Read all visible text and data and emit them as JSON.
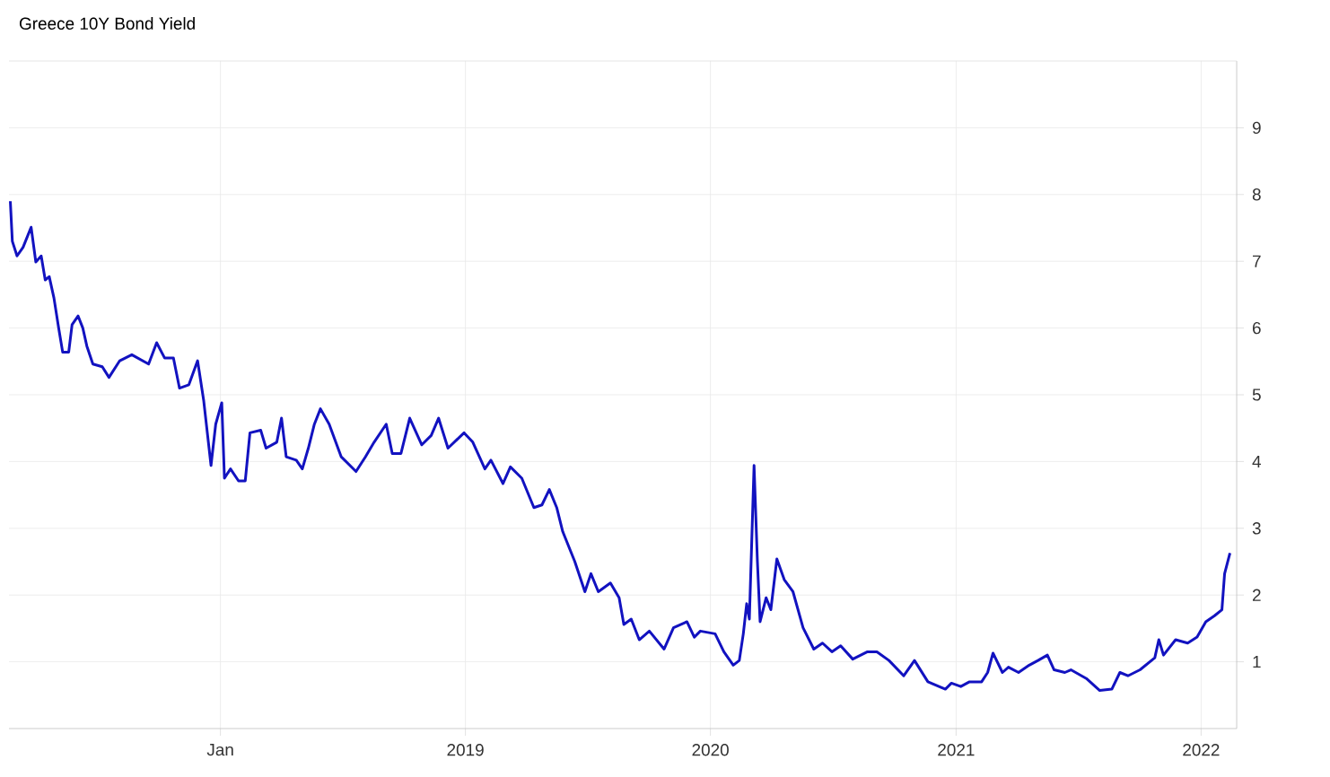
{
  "chart_data": {
    "type": "line",
    "title": "Greece 10Y Bond Yield",
    "color": "#1212c0",
    "grid": true,
    "xlim": [
      "2017-02-20",
      "2022-02-23"
    ],
    "ylim": [
      0,
      10
    ],
    "yticks": [
      1,
      2,
      3,
      4,
      5,
      6,
      7,
      8,
      9
    ],
    "xticks": [
      {
        "value": "2018-01-01",
        "label": "Jan"
      },
      {
        "value": "2019-01-01",
        "label": "2019"
      },
      {
        "value": "2020-01-01",
        "label": "2020"
      },
      {
        "value": "2021-01-01",
        "label": "2021"
      },
      {
        "value": "2022-01-01",
        "label": "2022"
      }
    ],
    "x": [
      "2017-02-22",
      "2017-02-25",
      "2017-03-04",
      "2017-03-13",
      "2017-03-25",
      "2017-04-01",
      "2017-04-09",
      "2017-04-15",
      "2017-04-21",
      "2017-04-28",
      "2017-05-05",
      "2017-05-11",
      "2017-05-20",
      "2017-05-25",
      "2017-06-03",
      "2017-06-10",
      "2017-06-16",
      "2017-06-25",
      "2017-07-09",
      "2017-07-19",
      "2017-08-04",
      "2017-08-22",
      "2017-09-16",
      "2017-09-28",
      "2017-10-10",
      "2017-10-23",
      "2017-11-01",
      "2017-11-15",
      "2017-11-28",
      "2017-12-07",
      "2017-12-18",
      "2017-12-25",
      "2018-01-03",
      "2018-01-07",
      "2018-01-16",
      "2018-01-28",
      "2018-02-07",
      "2018-02-14",
      "2018-03-02",
      "2018-03-10",
      "2018-03-26",
      "2018-04-02",
      "2018-04-09",
      "2018-04-24",
      "2018-05-03",
      "2018-05-12",
      "2018-05-21",
      "2018-05-30",
      "2018-06-12",
      "2018-06-30",
      "2018-07-22",
      "2018-08-05",
      "2018-08-18",
      "2018-09-05",
      "2018-09-14",
      "2018-09-27",
      "2018-10-10",
      "2018-10-28",
      "2018-11-11",
      "2018-11-22",
      "2018-12-06",
      "2018-12-30",
      "2019-01-12",
      "2019-01-30",
      "2019-02-08",
      "2019-02-26",
      "2019-03-09",
      "2019-03-26",
      "2019-04-13",
      "2019-04-25",
      "2019-05-06",
      "2019-05-17",
      "2019-05-26",
      "2019-06-13",
      "2019-06-28",
      "2019-07-07",
      "2019-07-18",
      "2019-08-05",
      "2019-08-18",
      "2019-08-25",
      "2019-09-05",
      "2019-09-17",
      "2019-10-02",
      "2019-10-24",
      "2019-11-07",
      "2019-11-27",
      "2019-12-08",
      "2019-12-17",
      "2020-01-08",
      "2020-01-21",
      "2020-02-04",
      "2020-02-13",
      "2020-02-19",
      "2020-02-24",
      "2020-02-28",
      "2020-03-06",
      "2020-03-11",
      "2020-03-15",
      "2020-03-24",
      "2020-03-31",
      "2020-04-09",
      "2020-04-20",
      "2020-05-03",
      "2020-05-18",
      "2020-06-03",
      "2020-06-16",
      "2020-06-30",
      "2020-07-13",
      "2020-07-31",
      "2020-08-22",
      "2020-09-05",
      "2020-09-23",
      "2020-10-15",
      "2020-10-31",
      "2020-11-20",
      "2020-12-16",
      "2020-12-25",
      "2021-01-08",
      "2021-01-21",
      "2021-02-08",
      "2021-02-17",
      "2021-02-25",
      "2021-03-11",
      "2021-03-20",
      "2021-04-04",
      "2021-04-20",
      "2021-05-03",
      "2021-05-17",
      "2021-05-27",
      "2021-06-12",
      "2021-06-21",
      "2021-07-14",
      "2021-08-03",
      "2021-08-21",
      "2021-09-02",
      "2021-09-14",
      "2021-10-02",
      "2021-10-24",
      "2021-10-30",
      "2021-11-06",
      "2021-11-24",
      "2021-12-12",
      "2021-12-26",
      "2022-01-08",
      "2022-01-21",
      "2022-02-01",
      "2022-02-05",
      "2022-02-13"
    ],
    "values": [
      7.9,
      7.3,
      7.08,
      7.21,
      7.51,
      6.99,
      7.08,
      6.72,
      6.77,
      6.45,
      6.0,
      5.64,
      5.64,
      6.05,
      6.18,
      6.0,
      5.73,
      5.46,
      5.42,
      5.26,
      5.51,
      5.6,
      5.46,
      5.78,
      5.55,
      5.55,
      5.1,
      5.15,
      5.51,
      4.92,
      3.94,
      4.56,
      4.88,
      3.75,
      3.89,
      3.71,
      3.71,
      4.43,
      4.47,
      4.2,
      4.29,
      4.65,
      4.07,
      4.02,
      3.89,
      4.2,
      4.56,
      4.79,
      4.56,
      4.07,
      3.85,
      4.07,
      4.29,
      4.56,
      4.12,
      4.12,
      4.65,
      4.25,
      4.39,
      4.65,
      4.2,
      4.43,
      4.29,
      3.89,
      4.02,
      3.67,
      3.92,
      3.75,
      3.31,
      3.35,
      3.58,
      3.31,
      2.95,
      2.5,
      2.05,
      2.32,
      2.05,
      2.18,
      1.96,
      1.56,
      1.64,
      1.33,
      1.46,
      1.19,
      1.51,
      1.6,
      1.37,
      1.46,
      1.42,
      1.15,
      0.95,
      1.02,
      1.42,
      1.87,
      1.64,
      3.94,
      2.5,
      1.6,
      1.96,
      1.78,
      2.54,
      2.23,
      2.05,
      1.51,
      1.19,
      1.28,
      1.15,
      1.24,
      1.04,
      1.15,
      1.15,
      1.02,
      0.79,
      1.02,
      0.7,
      0.59,
      0.68,
      0.63,
      0.7,
      0.7,
      0.84,
      1.13,
      0.84,
      0.92,
      0.84,
      0.95,
      1.02,
      1.1,
      0.88,
      0.84,
      0.88,
      0.75,
      0.57,
      0.59,
      0.84,
      0.79,
      0.88,
      1.06,
      1.33,
      1.1,
      1.33,
      1.28,
      1.37,
      1.6,
      1.69,
      1.78,
      2.32,
      2.63
    ]
  }
}
